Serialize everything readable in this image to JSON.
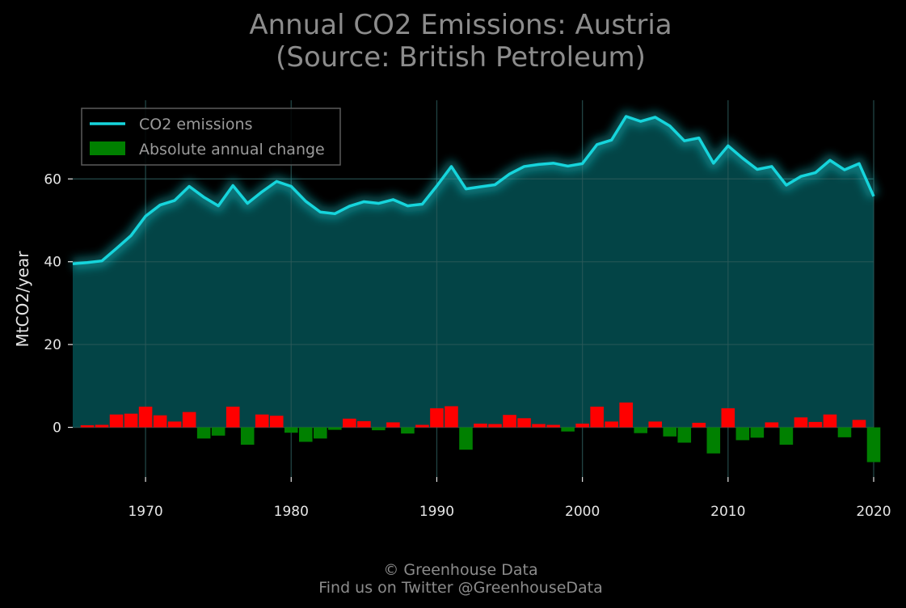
{
  "chart_data": {
    "type": "area",
    "title_line1": "Annual CO2 Emissions: Austria",
    "title_line2": "(Source: British Petroleum)",
    "xlabel": "",
    "ylabel": "MtCO2/year",
    "xlim": [
      1965,
      2020
    ],
    "ylim": [
      -12,
      79
    ],
    "x_ticks": [
      "1970",
      "1980",
      "1990",
      "2000",
      "2010",
      "2020"
    ],
    "y_ticks": [
      "0",
      "20",
      "40",
      "60"
    ],
    "grid": true,
    "legend_position": "top-left",
    "series": [
      {
        "name": "CO2 emissions",
        "kind": "line",
        "x": [
          1965,
          1966,
          1967,
          1968,
          1969,
          1970,
          1971,
          1972,
          1973,
          1974,
          1975,
          1976,
          1977,
          1978,
          1979,
          1980,
          1981,
          1982,
          1983,
          1984,
          1985,
          1986,
          1987,
          1988,
          1989,
          1990,
          1991,
          1992,
          1993,
          1994,
          1995,
          1996,
          1997,
          1998,
          1999,
          2000,
          2001,
          2002,
          2003,
          2004,
          2005,
          2006,
          2007,
          2008,
          2009,
          2010,
          2011,
          2012,
          2013,
          2014,
          2015,
          2016,
          2017,
          2018,
          2019,
          2020
        ],
        "values": [
          39.5,
          39.8,
          40.2,
          43.2,
          46.3,
          51.0,
          53.7,
          54.8,
          58.2,
          55.6,
          53.5,
          58.4,
          54.1,
          56.9,
          59.4,
          58.2,
          54.6,
          52.0,
          51.6,
          53.4,
          54.5,
          54.1,
          55.0,
          53.5,
          53.9,
          58.3,
          63.0,
          57.6,
          58.1,
          58.6,
          61.2,
          63.0,
          63.5,
          63.8,
          63.1,
          63.7,
          68.3,
          69.4,
          75.1,
          73.9,
          74.9,
          72.8,
          69.2,
          69.9,
          63.8,
          68.0,
          65.0,
          62.3,
          63.0,
          58.5,
          60.6,
          61.5,
          64.5,
          62.2,
          63.7,
          55.8
        ]
      },
      {
        "name": "Absolute annual change",
        "kind": "bar",
        "x": [
          1966,
          1967,
          1968,
          1969,
          1970,
          1971,
          1972,
          1973,
          1974,
          1975,
          1976,
          1977,
          1978,
          1979,
          1980,
          1981,
          1982,
          1983,
          1984,
          1985,
          1986,
          1987,
          1988,
          1989,
          1990,
          1991,
          1992,
          1993,
          1994,
          1995,
          1996,
          1997,
          1998,
          1999,
          2000,
          2001,
          2002,
          2003,
          2004,
          2005,
          2006,
          2007,
          2008,
          2009,
          2010,
          2011,
          2012,
          2013,
          2014,
          2015,
          2016,
          2017,
          2018,
          2019,
          2020
        ],
        "values": [
          0.5,
          0.6,
          3.1,
          3.3,
          5.0,
          2.9,
          1.4,
          3.7,
          -2.7,
          -2.0,
          5.0,
          -4.2,
          3.1,
          2.8,
          -1.3,
          -3.5,
          -2.7,
          -0.6,
          2.1,
          1.5,
          -0.7,
          1.2,
          -1.5,
          0.6,
          4.6,
          5.1,
          -5.4,
          0.9,
          0.8,
          3.0,
          2.2,
          0.8,
          0.6,
          -1.0,
          0.9,
          5.0,
          1.4,
          6.0,
          -1.4,
          1.4,
          -2.2,
          -3.7,
          1.1,
          -6.3,
          4.6,
          -3.1,
          -2.5,
          1.2,
          -4.2,
          2.4,
          1.3,
          3.1,
          -2.4,
          1.8,
          -8.4
        ]
      }
    ],
    "colors": {
      "line": "#16d5dc",
      "fill": "#034446",
      "positive": "#ff0000",
      "negative": "#008000",
      "background": "#000000",
      "grid": "#2c5a5a"
    }
  },
  "footer": {
    "line1": "© Greenhouse Data",
    "line2": "Find us on Twitter @GreenhouseData"
  }
}
